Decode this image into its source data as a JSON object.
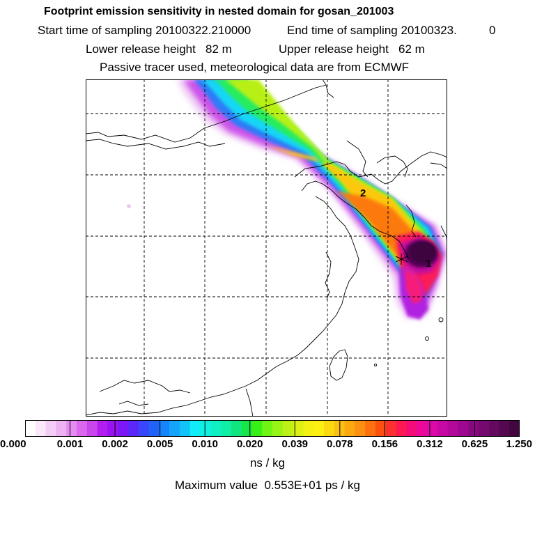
{
  "header": {
    "title": "Footprint emission sensitivity in nested domain for gosan_201003",
    "start_label": "Start time of sampling 20100322.210000",
    "end_label": "End time of sampling 20100323.",
    "end_suffix": "0",
    "lower_release": "Lower release height   82 m",
    "upper_release": "Upper release height   62 m",
    "tracer_note": "Passive tracer used, meteorological data are from ECMWF"
  },
  "map": {
    "markers": [
      {
        "label": "1",
        "name": "release-point-1-label"
      },
      {
        "label": "2",
        "name": "release-point-2-label"
      }
    ],
    "grid": "dashed"
  },
  "colorbar": {
    "ticks": [
      "0.000",
      "0.001",
      "0.002",
      "0.005",
      "0.010",
      "0.020",
      "0.039",
      "0.078",
      "0.156",
      "0.312",
      "0.625",
      "1.250"
    ],
    "units": "ns / kg",
    "colors": [
      "#ffffff",
      "#fbe8fb",
      "#f4cdf6",
      "#eeb1f2",
      "#e58cf0",
      "#da67ec",
      "#c946ec",
      "#b11ef0",
      "#9a14f2",
      "#7c18f6",
      "#5c28fa",
      "#3a46fa",
      "#2262f8",
      "#1884fa",
      "#14a4fa",
      "#10c4fa",
      "#12ecf8",
      "#10f0e0",
      "#10f0c4",
      "#10f0a4",
      "#12e480",
      "#16e64a",
      "#38f016",
      "#70f414",
      "#98f414",
      "#bcf016",
      "#dcf014",
      "#f4f014",
      "#fcf010",
      "#fcd810",
      "#fcc010",
      "#fca810",
      "#fc9010",
      "#fc7010",
      "#fc5010",
      "#fc3030",
      "#fc1850",
      "#f40c78",
      "#ec089a",
      "#dc08a8",
      "#c808a4",
      "#b4089a",
      "#9c0890",
      "#880880",
      "#760870",
      "#640860",
      "#540850",
      "#440640"
    ]
  },
  "footer": {
    "max_value": "Maximum value  0.553E+01 ps / kg"
  }
}
